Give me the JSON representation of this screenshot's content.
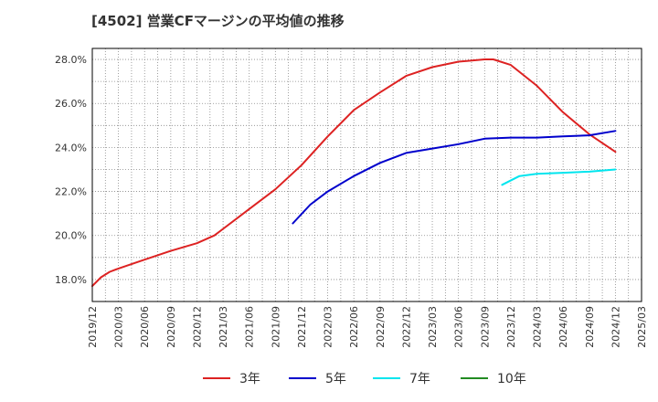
{
  "chart_data": {
    "type": "line",
    "title": "[4502]  営業CFマージンの平均値の推移",
    "xlabel": "",
    "ylabel": "",
    "ylim": [
      17.0,
      28.5
    ],
    "y_ticks": [
      "18.0%",
      "20.0%",
      "22.0%",
      "24.0%",
      "26.0%",
      "28.0%"
    ],
    "y_tick_values": [
      18,
      20,
      22,
      24,
      26,
      28
    ],
    "x_range": [
      "2019/12",
      "2025/03"
    ],
    "x_ticks": [
      "2019/12",
      "2020/03",
      "2020/06",
      "2020/09",
      "2020/12",
      "2021/03",
      "2021/06",
      "2021/09",
      "2021/12",
      "2022/03",
      "2022/06",
      "2022/09",
      "2022/12",
      "2023/03",
      "2023/06",
      "2023/09",
      "2023/12",
      "2024/03",
      "2024/06",
      "2024/09",
      "2024/12",
      "2025/03"
    ],
    "grid": true,
    "legend_position": "bottom",
    "series": [
      {
        "name": "3年",
        "color": "#dd2222",
        "points": [
          [
            "2019/12",
            17.7
          ],
          [
            "2020/01",
            18.1
          ],
          [
            "2020/02",
            18.35
          ],
          [
            "2020/03",
            18.5
          ],
          [
            "2020/06",
            18.9
          ],
          [
            "2020/09",
            19.3
          ],
          [
            "2020/12",
            19.65
          ],
          [
            "2021/02",
            20.0
          ],
          [
            "2021/03",
            20.3
          ],
          [
            "2021/06",
            21.2
          ],
          [
            "2021/09",
            22.1
          ],
          [
            "2021/12",
            23.2
          ],
          [
            "2022/03",
            24.5
          ],
          [
            "2022/06",
            25.7
          ],
          [
            "2022/09",
            26.5
          ],
          [
            "2022/12",
            27.25
          ],
          [
            "2023/03",
            27.65
          ],
          [
            "2023/06",
            27.9
          ],
          [
            "2023/09",
            28.0
          ],
          [
            "2023/10",
            28.0
          ],
          [
            "2023/12",
            27.75
          ],
          [
            "2024/03",
            26.8
          ],
          [
            "2024/06",
            25.6
          ],
          [
            "2024/09",
            24.6
          ],
          [
            "2024/12",
            23.8
          ]
        ]
      },
      {
        "name": "5年",
        "color": "#0000cc",
        "points": [
          [
            "2021/11",
            20.55
          ],
          [
            "2022/01",
            21.4
          ],
          [
            "2022/03",
            22.0
          ],
          [
            "2022/06",
            22.7
          ],
          [
            "2022/09",
            23.3
          ],
          [
            "2022/12",
            23.75
          ],
          [
            "2023/03",
            23.95
          ],
          [
            "2023/06",
            24.15
          ],
          [
            "2023/09",
            24.4
          ],
          [
            "2023/12",
            24.45
          ],
          [
            "2024/03",
            24.45
          ],
          [
            "2024/06",
            24.5
          ],
          [
            "2024/09",
            24.55
          ],
          [
            "2024/12",
            24.75
          ]
        ]
      },
      {
        "name": "7年",
        "color": "#00e5ee",
        "points": [
          [
            "2023/11",
            22.3
          ],
          [
            "2024/01",
            22.7
          ],
          [
            "2024/03",
            22.8
          ],
          [
            "2024/06",
            22.85
          ],
          [
            "2024/09",
            22.9
          ],
          [
            "2024/12",
            23.0
          ]
        ]
      },
      {
        "name": "10年",
        "color": "#228b22",
        "points": []
      }
    ]
  }
}
